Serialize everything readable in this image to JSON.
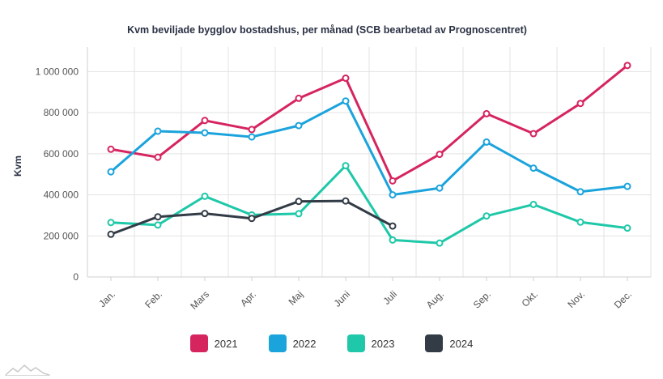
{
  "chart_data": {
    "type": "line",
    "title": "Kvm beviljade bygglov bostadshus, per månad (SCB bearbetad av Prognoscentret)",
    "ylabel": "Kvm",
    "xlabel": "",
    "categories": [
      "Jan.",
      "Feb.",
      "Mars",
      "Apr.",
      "Maj",
      "Juni",
      "Juli",
      "Aug.",
      "Sep.",
      "Okt.",
      "Nov.",
      "Dec."
    ],
    "yticks": [
      0,
      200000,
      400000,
      600000,
      800000,
      1000000
    ],
    "ytick_labels": [
      "0",
      "200 000",
      "400 000",
      "600 000",
      "800 000",
      "1 000 000"
    ],
    "ylim": [
      0,
      1120000
    ],
    "grid": true,
    "legend_position": "bottom",
    "series": [
      {
        "name": "2021",
        "color": "#d6245f",
        "values": [
          622000,
          583000,
          762000,
          718000,
          870000,
          968000,
          468000,
          597000,
          795000,
          698000,
          845000,
          1030000
        ]
      },
      {
        "name": "2022",
        "color": "#1ba3dc",
        "values": [
          512000,
          710000,
          702000,
          682000,
          737000,
          857000,
          400000,
          433000,
          657000,
          530000,
          415000,
          441000
        ]
      },
      {
        "name": "2023",
        "color": "#1ec8a8",
        "values": [
          265000,
          253000,
          393000,
          302000,
          308000,
          542000,
          180000,
          165000,
          297000,
          353000,
          267000,
          238000
        ]
      },
      {
        "name": "2024",
        "color": "#323b46",
        "values": [
          208000,
          293000,
          309000,
          285000,
          368000,
          370000,
          248000,
          null,
          null,
          null,
          null,
          null
        ]
      }
    ]
  }
}
